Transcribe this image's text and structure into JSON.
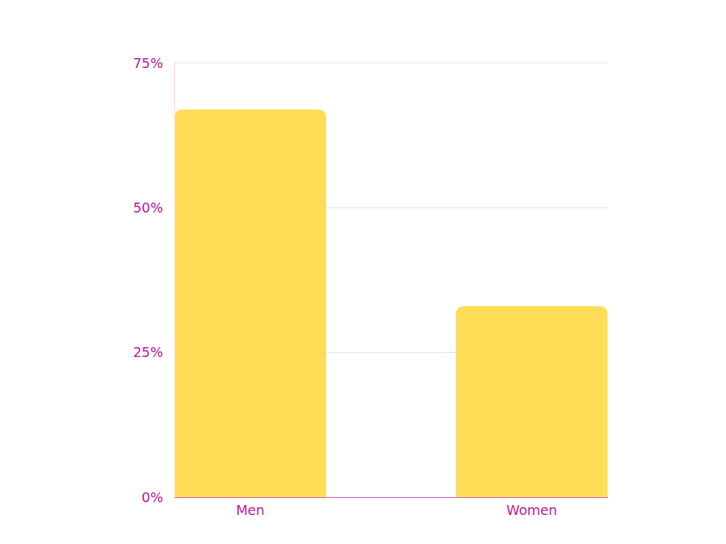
{
  "chart_data": {
    "type": "bar",
    "categories": [
      "Men",
      "Women"
    ],
    "values": [
      67,
      33
    ],
    "color": "#FFDD57",
    "ylim": [
      0,
      75
    ],
    "yticks": [
      {
        "value": 0,
        "label": "0%"
      },
      {
        "value": 25,
        "label": "25%"
      },
      {
        "value": 50,
        "label": "50%"
      },
      {
        "value": 75,
        "label": "75%"
      }
    ],
    "grid": true
  }
}
